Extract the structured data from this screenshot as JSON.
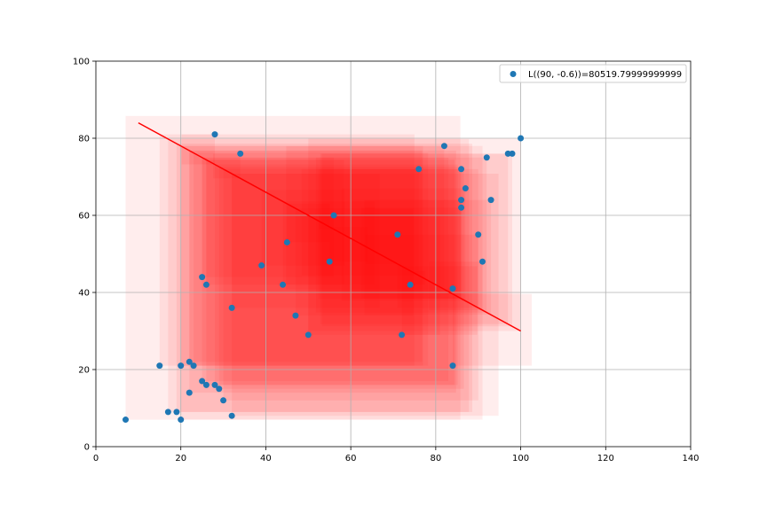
{
  "chart_data": {
    "type": "scatter",
    "title": "",
    "xlabel": "",
    "ylabel": "",
    "xlim": [
      0,
      140
    ],
    "ylim": [
      0,
      100
    ],
    "xticks": [
      "0",
      "20",
      "40",
      "60",
      "80",
      "100",
      "120",
      "140"
    ],
    "yticks": [
      "0",
      "20",
      "40",
      "60",
      "80",
      "100"
    ],
    "grid": true,
    "legend_position": "top-right",
    "colors": {
      "points": "#1f77b4",
      "line": "#ff0000",
      "squares": "#ff0000",
      "grid": "#b0b0b0"
    },
    "series": [
      {
        "name": "L((90, -0.6))=80519.79999999999",
        "kind": "scatter",
        "points": [
          [
            7,
            7
          ],
          [
            15,
            21
          ],
          [
            17,
            9
          ],
          [
            19,
            9
          ],
          [
            20,
            7
          ],
          [
            20,
            21
          ],
          [
            22,
            14
          ],
          [
            22,
            22
          ],
          [
            23,
            21
          ],
          [
            25,
            17
          ],
          [
            25,
            44
          ],
          [
            26,
            16
          ],
          [
            26,
            42
          ],
          [
            28,
            16
          ],
          [
            28,
            81
          ],
          [
            29,
            15
          ],
          [
            30,
            12
          ],
          [
            32,
            8
          ],
          [
            32,
            36
          ],
          [
            34,
            76
          ],
          [
            39,
            47
          ],
          [
            44,
            42
          ],
          [
            45,
            53
          ],
          [
            47,
            34
          ],
          [
            50,
            29
          ],
          [
            55,
            48
          ],
          [
            56,
            60
          ],
          [
            71,
            55
          ],
          [
            72,
            29
          ],
          [
            74,
            42
          ],
          [
            76,
            72
          ],
          [
            82,
            78
          ],
          [
            84,
            21
          ],
          [
            84,
            41
          ],
          [
            86,
            64
          ],
          [
            86,
            62
          ],
          [
            86,
            72
          ],
          [
            87,
            67
          ],
          [
            90,
            55
          ],
          [
            91,
            48
          ],
          [
            92,
            75
          ],
          [
            93,
            64
          ],
          [
            97,
            76
          ],
          [
            98,
            76
          ],
          [
            100,
            80
          ]
        ]
      },
      {
        "kind": "line",
        "x": [
          10,
          100
        ],
        "y": [
          84,
          30
        ]
      }
    ]
  }
}
